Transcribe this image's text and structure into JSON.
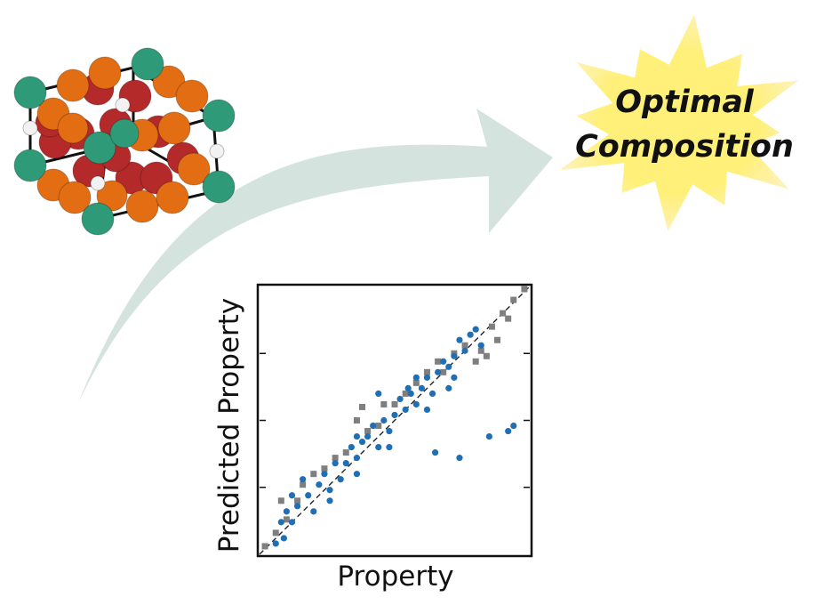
{
  "headline": {
    "line1": "Optimal",
    "line2": "Composition"
  },
  "colors": {
    "arrow": "#d5e3df",
    "star_core": "#fff07a",
    "star_edge": "#fdf2c4",
    "atom_green": "#2e9a78",
    "atom_orange": "#e36d12",
    "atom_red": "#b42a2a",
    "atom_white": "#f2f2f2",
    "series_main": "#1f6fb4",
    "series_secondary": "#7f7f7f"
  },
  "chart_data": {
    "type": "scatter",
    "xlabel": "Property",
    "ylabel": "Predicted Property",
    "xlim": [
      0,
      1
    ],
    "ylim": [
      0,
      1
    ],
    "grid": false,
    "reference_line": "y = x (dashed)",
    "series": [
      {
        "marker": "square",
        "color": "#7f7f7f",
        "points": [
          [
            0.02,
            0.03
          ],
          [
            0.06,
            0.08
          ],
          [
            0.08,
            0.2
          ],
          [
            0.1,
            0.13
          ],
          [
            0.14,
            0.2
          ],
          [
            0.16,
            0.26
          ],
          [
            0.2,
            0.3
          ],
          [
            0.24,
            0.32
          ],
          [
            0.28,
            0.36
          ],
          [
            0.32,
            0.38
          ],
          [
            0.36,
            0.5
          ],
          [
            0.38,
            0.55
          ],
          [
            0.4,
            0.46
          ],
          [
            0.44,
            0.48
          ],
          [
            0.46,
            0.56
          ],
          [
            0.5,
            0.56
          ],
          [
            0.54,
            0.6
          ],
          [
            0.58,
            0.64
          ],
          [
            0.62,
            0.68
          ],
          [
            0.66,
            0.72
          ],
          [
            0.68,
            0.68
          ],
          [
            0.72,
            0.75
          ],
          [
            0.76,
            0.78
          ],
          [
            0.8,
            0.72
          ],
          [
            0.82,
            0.76
          ],
          [
            0.84,
            0.74
          ],
          [
            0.86,
            0.85
          ],
          [
            0.88,
            0.8
          ],
          [
            0.9,
            0.9
          ],
          [
            0.92,
            0.88
          ],
          [
            0.94,
            0.95
          ],
          [
            0.98,
            0.99
          ]
        ]
      },
      {
        "marker": "circle",
        "color": "#1f6fb4",
        "points": [
          [
            0.06,
            0.04
          ],
          [
            0.08,
            0.12
          ],
          [
            0.1,
            0.16
          ],
          [
            0.12,
            0.22
          ],
          [
            0.14,
            0.18
          ],
          [
            0.16,
            0.28
          ],
          [
            0.18,
            0.22
          ],
          [
            0.2,
            0.16
          ],
          [
            0.22,
            0.26
          ],
          [
            0.24,
            0.3
          ],
          [
            0.26,
            0.24
          ],
          [
            0.28,
            0.34
          ],
          [
            0.3,
            0.28
          ],
          [
            0.32,
            0.34
          ],
          [
            0.34,
            0.4
          ],
          [
            0.36,
            0.36
          ],
          [
            0.38,
            0.42
          ],
          [
            0.4,
            0.44
          ],
          [
            0.42,
            0.48
          ],
          [
            0.44,
            0.4
          ],
          [
            0.46,
            0.5
          ],
          [
            0.48,
            0.46
          ],
          [
            0.5,
            0.52
          ],
          [
            0.52,
            0.58
          ],
          [
            0.54,
            0.54
          ],
          [
            0.56,
            0.6
          ],
          [
            0.58,
            0.56
          ],
          [
            0.6,
            0.62
          ],
          [
            0.62,
            0.66
          ],
          [
            0.64,
            0.6
          ],
          [
            0.66,
            0.68
          ],
          [
            0.68,
            0.72
          ],
          [
            0.7,
            0.7
          ],
          [
            0.72,
            0.74
          ],
          [
            0.74,
            0.8
          ],
          [
            0.76,
            0.76
          ],
          [
            0.78,
            0.82
          ],
          [
            0.8,
            0.84
          ],
          [
            0.74,
            0.36
          ],
          [
            0.92,
            0.46
          ],
          [
            0.85,
            0.44
          ],
          [
            0.94,
            0.48
          ],
          [
            0.65,
            0.38
          ],
          [
            0.55,
            0.62
          ],
          [
            0.48,
            0.4
          ],
          [
            0.36,
            0.44
          ],
          [
            0.26,
            0.2
          ],
          [
            0.12,
            0.12
          ],
          [
            0.09,
            0.06
          ],
          [
            0.44,
            0.6
          ],
          [
            0.58,
            0.66
          ],
          [
            0.7,
            0.62
          ],
          [
            0.36,
            0.3
          ],
          [
            0.62,
            0.54
          ],
          [
            0.72,
            0.66
          ],
          [
            0.82,
            0.78
          ]
        ]
      }
    ]
  }
}
